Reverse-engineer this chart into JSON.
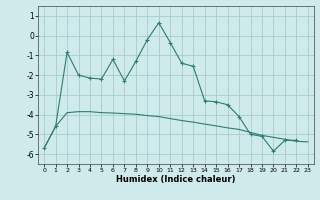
{
  "xlabel": "Humidex (Indice chaleur)",
  "series1": {
    "x": [
      0,
      1,
      2,
      3,
      4,
      5,
      6,
      7,
      8,
      9,
      10,
      11,
      12,
      13,
      14,
      15,
      16,
      17,
      18,
      19,
      20,
      21,
      22,
      23
    ],
    "y": [
      -5.7,
      -4.6,
      -0.85,
      -2.0,
      -2.15,
      -2.2,
      -1.2,
      -2.3,
      -1.3,
      -0.2,
      0.65,
      -0.35,
      -1.4,
      -1.55,
      -3.3,
      -3.35,
      -3.5,
      -4.1,
      -5.0,
      -5.1,
      -5.85,
      -5.3,
      -5.3,
      null
    ]
  },
  "series2": {
    "x": [
      0,
      1,
      2,
      3,
      4,
      5,
      6,
      7,
      8,
      9,
      10,
      11,
      12,
      13,
      14,
      15,
      16,
      17,
      18,
      19,
      20,
      21,
      22,
      23
    ],
    "y": [
      -5.7,
      -4.6,
      -3.9,
      -3.85,
      -3.85,
      -3.9,
      -3.92,
      -3.95,
      -3.98,
      -4.05,
      -4.1,
      -4.2,
      -4.3,
      -4.38,
      -4.48,
      -4.57,
      -4.67,
      -4.75,
      -4.9,
      -5.05,
      -5.15,
      -5.25,
      -5.35,
      -5.38
    ]
  },
  "line_color": "#2d7d6e",
  "bg_color": "#ceeaea",
  "grid_color": "#a8cccc",
  "ylim": [
    -6.5,
    1.5
  ],
  "xlim": [
    -0.5,
    23.5
  ],
  "yticks": [
    1,
    0,
    -1,
    -2,
    -3,
    -4,
    -5,
    -6
  ],
  "xticks": [
    0,
    1,
    2,
    3,
    4,
    5,
    6,
    7,
    8,
    9,
    10,
    11,
    12,
    13,
    14,
    15,
    16,
    17,
    18,
    19,
    20,
    21,
    22,
    23
  ]
}
